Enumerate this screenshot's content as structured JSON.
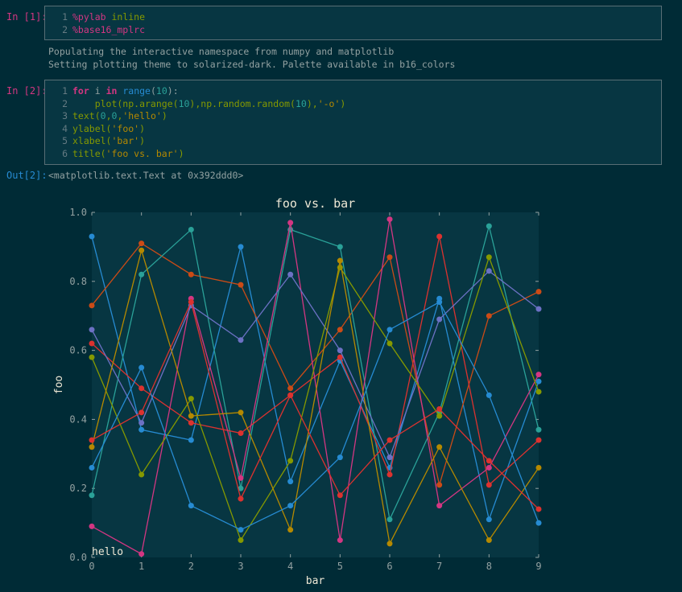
{
  "cells": [
    {
      "prompt": "In [1]:",
      "lines": [
        {
          "num": "1",
          "tokens": [
            {
              "t": "%pylab",
              "c": "magic"
            },
            {
              "t": " inline",
              "c": "fn"
            }
          ]
        },
        {
          "num": "2",
          "tokens": [
            {
              "t": "%base16_mplrc",
              "c": "magic"
            }
          ]
        }
      ],
      "output": [
        "Populating the interactive namespace from numpy and matplotlib",
        "Setting plotting theme to solarized-dark. Palette available in b16_colors"
      ]
    },
    {
      "prompt": "In [2]:",
      "lines": [
        {
          "num": "1",
          "tokens": [
            {
              "t": "for",
              "c": "kw"
            },
            {
              "t": " i ",
              "c": "plain"
            },
            {
              "t": "in",
              "c": "kw"
            },
            {
              "t": " ",
              "c": "plain"
            },
            {
              "t": "range",
              "c": "bi"
            },
            {
              "t": "(",
              "c": "plain"
            },
            {
              "t": "10",
              "c": "num"
            },
            {
              "t": "):",
              "c": "plain"
            }
          ]
        },
        {
          "num": "2",
          "tokens": [
            {
              "t": "    plot(np.arange(",
              "c": "fn"
            },
            {
              "t": "10",
              "c": "num"
            },
            {
              "t": "),np.random.random(",
              "c": "fn"
            },
            {
              "t": "10",
              "c": "num"
            },
            {
              "t": "),",
              "c": "fn"
            },
            {
              "t": "'-o'",
              "c": "str"
            },
            {
              "t": ")",
              "c": "fn"
            }
          ]
        },
        {
          "num": "3",
          "tokens": [
            {
              "t": "text(",
              "c": "fn"
            },
            {
              "t": "0",
              "c": "num"
            },
            {
              "t": ",",
              "c": "fn"
            },
            {
              "t": "0",
              "c": "num"
            },
            {
              "t": ",",
              "c": "fn"
            },
            {
              "t": "'hello'",
              "c": "str"
            },
            {
              "t": ")",
              "c": "fn"
            }
          ]
        },
        {
          "num": "4",
          "tokens": [
            {
              "t": "ylabel(",
              "c": "fn"
            },
            {
              "t": "'foo'",
              "c": "str"
            },
            {
              "t": ")",
              "c": "fn"
            }
          ]
        },
        {
          "num": "5",
          "tokens": [
            {
              "t": "xlabel(",
              "c": "fn"
            },
            {
              "t": "'bar'",
              "c": "str"
            },
            {
              "t": ")",
              "c": "fn"
            }
          ]
        },
        {
          "num": "6",
          "tokens": [
            {
              "t": "title(",
              "c": "fn"
            },
            {
              "t": "'foo vs. bar'",
              "c": "str"
            },
            {
              "t": ")",
              "c": "fn"
            }
          ]
        }
      ]
    }
  ],
  "out_prompt": "Out[2]:",
  "out_text": "<matplotlib.text.Text at 0x392ddd0>",
  "chart_data": {
    "type": "line",
    "title": "foo vs. bar",
    "xlabel": "bar",
    "ylabel": "foo",
    "xlim": [
      0,
      9
    ],
    "ylim": [
      0.0,
      1.0
    ],
    "xticks": [
      "0",
      "1",
      "2",
      "3",
      "4",
      "5",
      "6",
      "7",
      "8",
      "9"
    ],
    "yticks": [
      "0.0",
      "0.2",
      "0.4",
      "0.6",
      "0.8",
      "1.0"
    ],
    "annotation": {
      "text": "hello",
      "x": 0,
      "y": 0
    },
    "background": "#073642",
    "grid": false,
    "x": [
      0,
      1,
      2,
      3,
      4,
      5,
      6,
      7,
      8,
      9
    ],
    "series": [
      {
        "color": "#268bd2",
        "values": [
          0.93,
          0.37,
          0.34,
          0.9,
          0.22,
          0.57,
          0.26,
          0.75,
          0.11,
          0.51
        ]
      },
      {
        "color": "#cb4b16",
        "values": [
          0.73,
          0.91,
          0.82,
          0.79,
          0.49,
          0.66,
          0.87,
          0.21,
          0.7,
          0.77
        ]
      },
      {
        "color": "#2aa198",
        "values": [
          0.18,
          0.82,
          0.95,
          0.2,
          0.95,
          0.9,
          0.11,
          0.42,
          0.96,
          0.37
        ]
      },
      {
        "color": "#dc322f",
        "values": [
          0.62,
          0.49,
          0.39,
          0.36,
          0.47,
          0.58,
          0.24,
          0.93,
          0.21,
          0.34
        ]
      },
      {
        "color": "#d33682",
        "values": [
          0.09,
          0.01,
          0.75,
          0.23,
          0.97,
          0.05,
          0.98,
          0.15,
          0.26,
          0.53
        ]
      },
      {
        "color": "#6c71c4",
        "values": [
          0.66,
          0.39,
          0.73,
          0.63,
          0.82,
          0.6,
          0.29,
          0.69,
          0.83,
          0.72
        ]
      },
      {
        "color": "#859900",
        "values": [
          0.58,
          0.24,
          0.46,
          0.05,
          0.28,
          0.84,
          0.62,
          0.41,
          0.87,
          0.48
        ]
      },
      {
        "color": "#b58900",
        "values": [
          0.32,
          0.89,
          0.41,
          0.42,
          0.08,
          0.86,
          0.04,
          0.32,
          0.05,
          0.26
        ]
      },
      {
        "color": "#268bd2",
        "values": [
          0.26,
          0.55,
          0.15,
          0.08,
          0.15,
          0.29,
          0.66,
          0.74,
          0.47,
          0.1
        ]
      },
      {
        "color": "#dc322f",
        "values": [
          0.34,
          0.42,
          0.74,
          0.17,
          0.47,
          0.18,
          0.34,
          0.43,
          0.28,
          0.14
        ]
      }
    ]
  }
}
